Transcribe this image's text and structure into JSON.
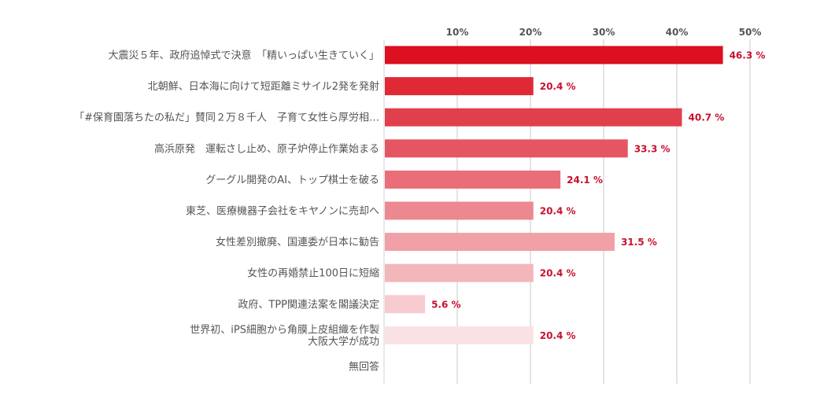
{
  "chart_data": {
    "type": "bar",
    "orientation": "horizontal",
    "title": "",
    "xlabel": "",
    "ylabel": "",
    "xlim": [
      0,
      50
    ],
    "ticks": [
      10,
      20,
      30,
      40,
      50
    ],
    "tick_labels": [
      "10%",
      "20%",
      "30%",
      "40%",
      "50%"
    ],
    "tick_position": "top",
    "grid": true,
    "legend": "none",
    "categories": [
      [
        "大震災５年、政府追悼式で決意　「精いっぱい生きていく」"
      ],
      [
        "北朝鮮、日本海に向けて短距離ミサイル2発を発射"
      ],
      [
        "「#保育園落ちたの私だ」賛同２万８千人　子育て女性ら厚労相…"
      ],
      [
        "高浜原発　運転さし止め、原子炉停止作業始まる"
      ],
      [
        "グーグル開発のAI、トップ棋士を破る"
      ],
      [
        "東芝、医療機器子会社をキヤノンに売却へ"
      ],
      [
        "女性差別撤廃、国連委が日本に勧告"
      ],
      [
        "女性の再婚禁止100日に短縮"
      ],
      [
        "政府、TPP関連法案を閣議決定"
      ],
      [
        "世界初、iPS細胞から角膜上皮組織を作製",
        "大阪大学が成功"
      ],
      [
        "無回答"
      ]
    ],
    "values": [
      46.3,
      20.4,
      40.7,
      33.3,
      24.1,
      20.4,
      31.5,
      20.4,
      5.6,
      20.4,
      null
    ],
    "value_labels": [
      "46.3 %",
      "20.4 %",
      "40.7 %",
      "33.3 %",
      "24.1 %",
      "20.4 %",
      "31.5 %",
      "20.4 %",
      "5.6 %",
      "20.4 %",
      ""
    ],
    "colors": [
      "#dc1020",
      "#df2a36",
      "#e0404c",
      "#e55662",
      "#e96e77",
      "#ec8890",
      "#f0a0a6",
      "#f3b6bb",
      "#f7cbcf",
      "#fae2e4",
      "#fdf1f2"
    ]
  }
}
